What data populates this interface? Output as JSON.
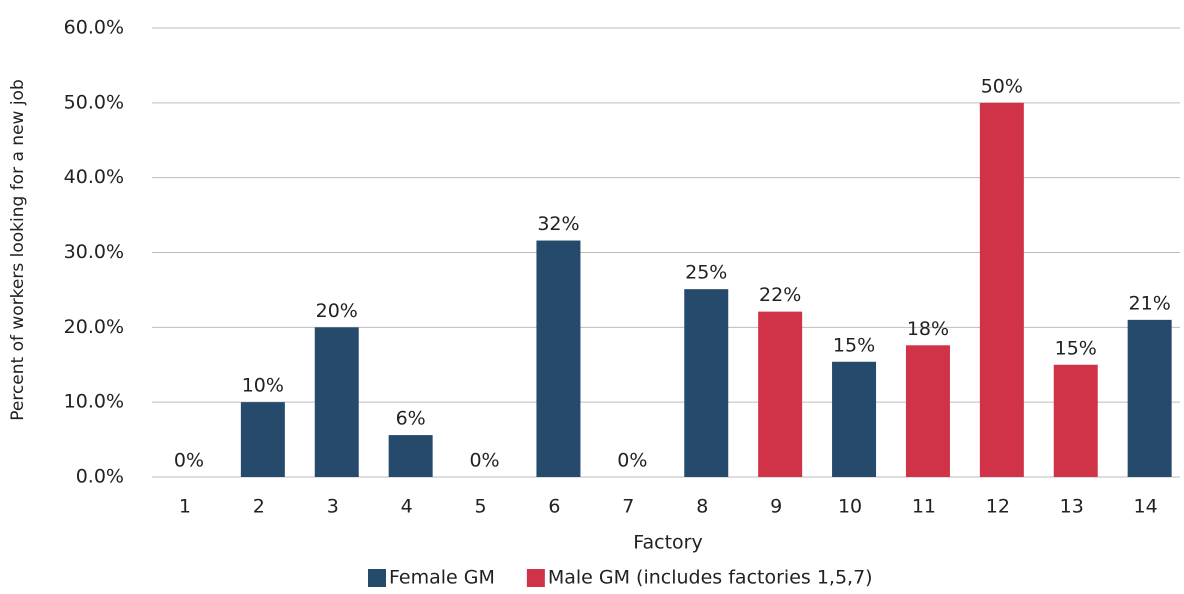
{
  "chart_data": {
    "type": "bar",
    "x_label": "Factory",
    "y_label": "Percent of workers looking for a new job",
    "categories": [
      "1",
      "2",
      "3",
      "4",
      "5",
      "6",
      "7",
      "8",
      "9",
      "10",
      "11",
      "12",
      "13",
      "14"
    ],
    "series": [
      {
        "name": "Female GM",
        "color": "#264a6b",
        "values": [
          null,
          10,
          20,
          5.6,
          null,
          31.6,
          null,
          25.1,
          null,
          15.4,
          null,
          null,
          null,
          21
        ],
        "value_labels": [
          null,
          "10%",
          "20%",
          "6%",
          null,
          "32%",
          null,
          "25%",
          null,
          "15%",
          null,
          null,
          null,
          "21%"
        ]
      },
      {
        "name": "Male GM (includes factories 1,5,7)",
        "color": "#d03347",
        "values": [
          0,
          null,
          null,
          null,
          0,
          null,
          0,
          null,
          22.1,
          null,
          17.6,
          50,
          15,
          null
        ],
        "value_labels": [
          "0%",
          null,
          null,
          null,
          "0%",
          null,
          "0%",
          null,
          "22%",
          null,
          "18%",
          "50%",
          "15%",
          null
        ]
      }
    ],
    "ylim": [
      0,
      60
    ],
    "yticks": [
      {
        "value": 0,
        "label": "0.0%"
      },
      {
        "value": 10,
        "label": "10.0%"
      },
      {
        "value": 20,
        "label": "20.0%"
      },
      {
        "value": 30,
        "label": "30.0%"
      },
      {
        "value": 40,
        "label": "40.0%"
      },
      {
        "value": 50,
        "label": "50.0%"
      },
      {
        "value": 60,
        "label": "60.0%"
      }
    ],
    "grid": true,
    "legend": "bottom"
  }
}
